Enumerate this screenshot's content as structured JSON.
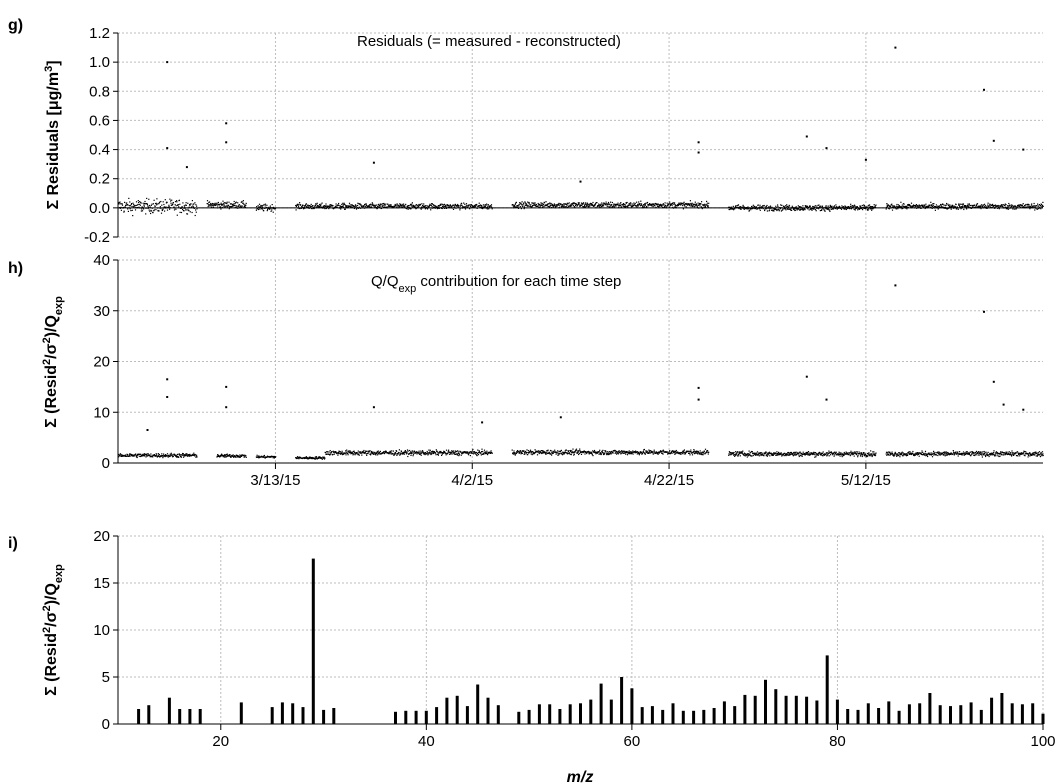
{
  "chart_data": [
    {
      "panel": "g)",
      "type": "scatter",
      "annotation": "Residuals (= measured - reconstructed)",
      "ylabel": {
        "prefix": "Σ Residuals [μg/m",
        "sup": "3",
        "suffix": "]"
      },
      "ylim": [
        -0.2,
        1.2
      ],
      "yticks": [
        "-0.2",
        "0.0",
        "0.2",
        "0.4",
        "0.6",
        "0.8",
        "1.0",
        "1.2"
      ],
      "x_date_range": [
        "2/25/15",
        "5/30/15"
      ],
      "xticks": [
        "3/13/15",
        "4/2/15",
        "4/22/15",
        "5/12/15"
      ],
      "grid": true,
      "segments": [
        {
          "start": "2/25/15",
          "end": "3/5/15",
          "level": 0.01,
          "spread": 0.06
        },
        {
          "start": "3/6/15",
          "end": "3/10/15",
          "level": 0.02,
          "spread": 0.03
        },
        {
          "start": "3/11/15",
          "end": "3/13/15",
          "level": 0.0,
          "spread": 0.03
        },
        {
          "start": "3/15/15",
          "end": "4/4/15",
          "level": 0.01,
          "spread": 0.025
        },
        {
          "start": "4/6/15",
          "end": "4/26/15",
          "level": 0.02,
          "spread": 0.025
        },
        {
          "start": "4/28/15",
          "end": "5/13/15",
          "level": 0.0,
          "spread": 0.025
        },
        {
          "start": "5/14/15",
          "end": "5/30/15",
          "level": 0.01,
          "spread": 0.025
        }
      ],
      "outliers": [
        {
          "x": "3/2/15",
          "y": 1.0
        },
        {
          "x": "3/2/15",
          "y": 0.41
        },
        {
          "x": "3/8/15",
          "y": 0.58
        },
        {
          "x": "3/8/15",
          "y": 0.45
        },
        {
          "x": "3/23/15",
          "y": 0.31
        },
        {
          "x": "4/25/15",
          "y": 0.45
        },
        {
          "x": "4/25/15",
          "y": 0.38
        },
        {
          "x": "5/6/15",
          "y": 0.49
        },
        {
          "x": "5/8/15",
          "y": 0.41
        },
        {
          "x": "5/12/15",
          "y": 0.33
        },
        {
          "x": "5/15/15",
          "y": 1.1
        },
        {
          "x": "5/24/15",
          "y": 0.81
        },
        {
          "x": "5/25/15",
          "y": 0.46
        },
        {
          "x": "5/28/15",
          "y": 0.4
        },
        {
          "x": "4/13/15",
          "y": 0.18
        },
        {
          "x": "3/4/15",
          "y": 0.28
        }
      ]
    },
    {
      "panel": "h)",
      "type": "scatter",
      "annotation": {
        "pre": "Q/Q",
        "sub": "exp",
        "post": " contribution for each time step"
      },
      "ylabel": {
        "p1": "Σ (Resid",
        "sup1": "2",
        "p2": "/σ",
        "sup2": "2",
        "p3": ")/Q",
        "sub": "exp"
      },
      "ylim": [
        0,
        40
      ],
      "yticks": [
        "0",
        "10",
        "20",
        "30",
        "40"
      ],
      "x_date_range": [
        "2/25/15",
        "5/30/15"
      ],
      "xticks": [
        "3/13/15",
        "4/2/15",
        "4/22/15",
        "5/12/15"
      ],
      "grid": true,
      "segments": [
        {
          "start": "2/25/15",
          "end": "3/5/15",
          "level": 1.5,
          "spread": 0.5
        },
        {
          "start": "3/7/15",
          "end": "3/10/15",
          "level": 1.4,
          "spread": 0.4
        },
        {
          "start": "3/11/15",
          "end": "3/13/15",
          "level": 1.2,
          "spread": 0.3
        },
        {
          "start": "3/15/15",
          "end": "3/18/15",
          "level": 1.0,
          "spread": 0.3
        },
        {
          "start": "3/18/15",
          "end": "4/4/15",
          "level": 2.0,
          "spread": 0.6
        },
        {
          "start": "4/6/15",
          "end": "4/26/15",
          "level": 2.1,
          "spread": 0.6
        },
        {
          "start": "4/28/15",
          "end": "5/13/15",
          "level": 1.8,
          "spread": 0.6
        },
        {
          "start": "5/14/15",
          "end": "5/30/15",
          "level": 1.8,
          "spread": 0.6
        }
      ],
      "outliers": [
        {
          "x": "3/2/15",
          "y": 16.5
        },
        {
          "x": "3/2/15",
          "y": 13.0
        },
        {
          "x": "3/8/15",
          "y": 15.0
        },
        {
          "x": "3/8/15",
          "y": 11.0
        },
        {
          "x": "3/23/15",
          "y": 11.0
        },
        {
          "x": "4/25/15",
          "y": 14.8
        },
        {
          "x": "4/25/15",
          "y": 12.5
        },
        {
          "x": "5/6/15",
          "y": 17.0
        },
        {
          "x": "5/8/15",
          "y": 12.5
        },
        {
          "x": "5/15/15",
          "y": 35.0
        },
        {
          "x": "5/24/15",
          "y": 29.8
        },
        {
          "x": "5/25/15",
          "y": 16.0
        },
        {
          "x": "5/26/15",
          "y": 11.5
        },
        {
          "x": "5/28/15",
          "y": 10.5
        },
        {
          "x": "4/11/15",
          "y": 9.0
        },
        {
          "x": "2/28/15",
          "y": 6.5
        },
        {
          "x": "4/3/15",
          "y": 8.0
        }
      ]
    },
    {
      "panel": "i)",
      "type": "bar",
      "ylabel": {
        "p1": "Σ (Resid",
        "sup1": "2",
        "p2": "/σ",
        "sup2": "2",
        "p3": ")/Q",
        "sub": "exp"
      },
      "xlabel": "m/z",
      "xlim": [
        10,
        100
      ],
      "ylim": [
        0,
        20
      ],
      "xticks": [
        "20",
        "40",
        "60",
        "80",
        "100"
      ],
      "yticks": [
        "0",
        "5",
        "10",
        "15",
        "20"
      ],
      "grid": true,
      "x": [
        12,
        13,
        15,
        16,
        17,
        18,
        22,
        25,
        26,
        27,
        28,
        29,
        30,
        31,
        37,
        38,
        39,
        40,
        41,
        42,
        43,
        44,
        45,
        46,
        47,
        49,
        50,
        51,
        52,
        53,
        54,
        55,
        56,
        57,
        58,
        59,
        60,
        61,
        62,
        63,
        64,
        65,
        66,
        67,
        68,
        69,
        70,
        71,
        72,
        73,
        74,
        75,
        76,
        77,
        78,
        79,
        80,
        81,
        82,
        83,
        84,
        85,
        86,
        87,
        88,
        89,
        90,
        91,
        92,
        93,
        94,
        95,
        96,
        97,
        98,
        99,
        100
      ],
      "values": [
        1.6,
        2.0,
        2.8,
        1.6,
        1.6,
        1.6,
        2.3,
        1.8,
        2.3,
        2.2,
        1.8,
        17.6,
        1.5,
        1.7,
        1.3,
        1.4,
        1.4,
        1.4,
        1.8,
        2.8,
        3.0,
        1.9,
        4.2,
        2.8,
        2.0,
        1.3,
        1.5,
        2.1,
        2.1,
        1.6,
        2.1,
        2.2,
        2.6,
        4.3,
        2.6,
        5.0,
        3.8,
        1.8,
        1.9,
        1.5,
        2.2,
        1.4,
        1.4,
        1.5,
        1.7,
        2.4,
        1.9,
        3.1,
        3.0,
        4.7,
        3.7,
        3.0,
        3.0,
        2.9,
        2.5,
        7.3,
        2.6,
        1.6,
        1.5,
        2.2,
        1.7,
        2.4,
        1.4,
        2.1,
        2.2,
        3.3,
        2.0,
        1.9,
        2.0,
        2.3,
        1.5,
        2.8,
        3.3,
        2.2,
        2.1,
        2.2,
        1.1
      ]
    }
  ]
}
